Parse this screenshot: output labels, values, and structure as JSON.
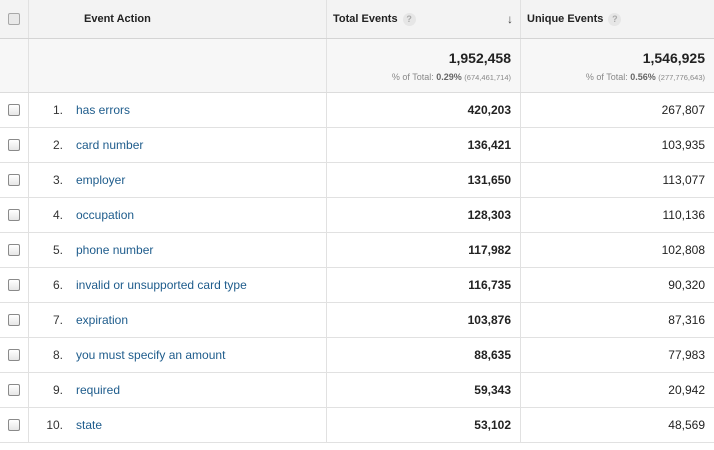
{
  "header": {
    "event_action": "Event Action",
    "total_events": "Total Events",
    "unique_events": "Unique Events"
  },
  "totals": {
    "total_events": "1,952,458",
    "unique_events": "1,546,925",
    "total_pct_label": "% of Total:",
    "total_pct_value": "0.29%",
    "total_pct_base": "(674,461,714)",
    "unique_pct_label": "% of Total:",
    "unique_pct_value": "0.56%",
    "unique_pct_base": "(277,776,643)"
  },
  "rows": [
    {
      "rank": "1.",
      "action": "has errors",
      "total": "420,203",
      "unique": "267,807"
    },
    {
      "rank": "2.",
      "action": "card number",
      "total": "136,421",
      "unique": "103,935"
    },
    {
      "rank": "3.",
      "action": "employer",
      "total": "131,650",
      "unique": "113,077"
    },
    {
      "rank": "4.",
      "action": "occupation",
      "total": "128,303",
      "unique": "110,136"
    },
    {
      "rank": "5.",
      "action": "phone number",
      "total": "117,982",
      "unique": "102,808"
    },
    {
      "rank": "6.",
      "action": "invalid or unsupported card type",
      "total": "116,735",
      "unique": "90,320"
    },
    {
      "rank": "7.",
      "action": "expiration",
      "total": "103,876",
      "unique": "87,316"
    },
    {
      "rank": "8.",
      "action": "you must specify an amount",
      "total": "88,635",
      "unique": "77,983"
    },
    {
      "rank": "9.",
      "action": "required",
      "total": "59,343",
      "unique": "20,942"
    },
    {
      "rank": "10.",
      "action": "state",
      "total": "53,102",
      "unique": "48,569"
    }
  ],
  "icons": {
    "help": "?",
    "sort_desc": "↓"
  },
  "colors": {
    "link": "#1e5c8c",
    "header_bg": "#f3f3f3"
  }
}
